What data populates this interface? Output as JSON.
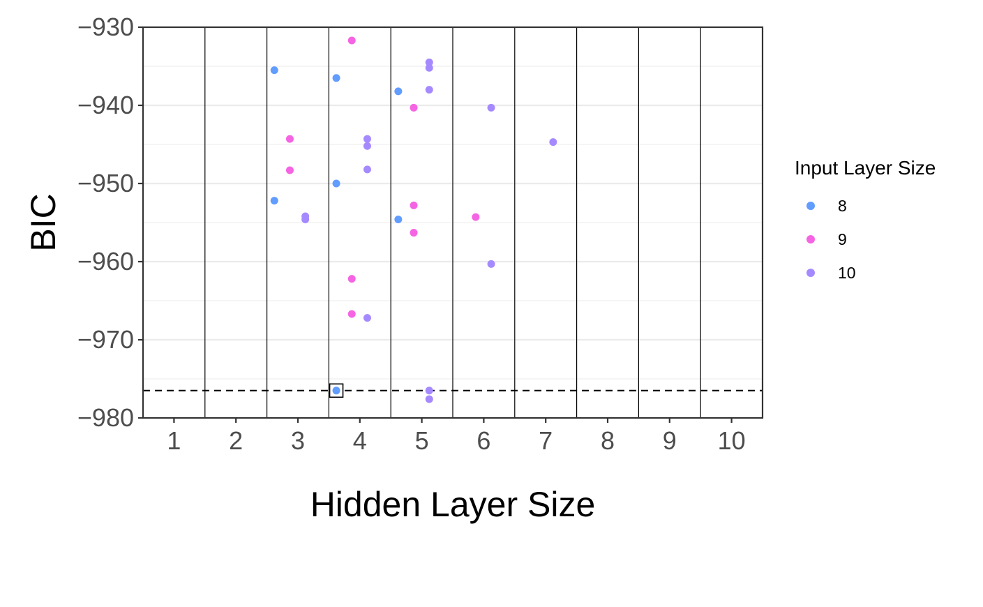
{
  "chart_data": {
    "type": "scatter",
    "title": "",
    "xlabel": "Hidden Layer Size",
    "ylabel": "BIC",
    "x_categories": [
      "1",
      "2",
      "3",
      "4",
      "5",
      "6",
      "7",
      "8",
      "9",
      "10"
    ],
    "ylim": [
      -980,
      -930
    ],
    "y_ticks": [
      -930,
      -940,
      -950,
      -960,
      -970,
      -980
    ],
    "y_tick_labels": [
      "−930",
      "−940",
      "−950",
      "−960",
      "−970",
      "−980"
    ],
    "grid": true,
    "legend_position": "right",
    "legend_title": "Input Layer Size",
    "reference_line": {
      "y": -976.5,
      "style": "dashed"
    },
    "highlighted_point": {
      "input_layer_size": "8",
      "hidden_layer_size": 4,
      "bic": -976.5
    },
    "series": [
      {
        "name": "8",
        "color": "#619CFF",
        "points": [
          {
            "x": 3,
            "y": -935.5
          },
          {
            "x": 3,
            "y": -952.2
          },
          {
            "x": 4,
            "y": -936.5
          },
          {
            "x": 4,
            "y": -950.0
          },
          {
            "x": 4,
            "y": -976.5
          },
          {
            "x": 5,
            "y": -938.2
          },
          {
            "x": 5,
            "y": -954.6
          }
        ]
      },
      {
        "name": "9",
        "color": "#F564E3",
        "points": [
          {
            "x": 3,
            "y": -944.3
          },
          {
            "x": 3,
            "y": -948.3
          },
          {
            "x": 4,
            "y": -931.7
          },
          {
            "x": 4,
            "y": -962.2
          },
          {
            "x": 4,
            "y": -966.7
          },
          {
            "x": 5,
            "y": -940.3
          },
          {
            "x": 5,
            "y": -952.8
          },
          {
            "x": 5,
            "y": -956.3
          },
          {
            "x": 6,
            "y": -954.3
          }
        ]
      },
      {
        "name": "10",
        "color": "#A58AFF",
        "points": [
          {
            "x": 3,
            "y": -954.2
          },
          {
            "x": 3,
            "y": -954.6
          },
          {
            "x": 4,
            "y": -944.3
          },
          {
            "x": 4,
            "y": -945.2
          },
          {
            "x": 4,
            "y": -948.2
          },
          {
            "x": 4,
            "y": -967.2
          },
          {
            "x": 5,
            "y": -934.5
          },
          {
            "x": 5,
            "y": -935.2
          },
          {
            "x": 5,
            "y": -938.0
          },
          {
            "x": 5,
            "y": -976.5
          },
          {
            "x": 5,
            "y": -977.6
          },
          {
            "x": 6,
            "y": -940.3
          },
          {
            "x": 6,
            "y": -960.3
          },
          {
            "x": 7,
            "y": -944.7
          }
        ]
      }
    ]
  }
}
